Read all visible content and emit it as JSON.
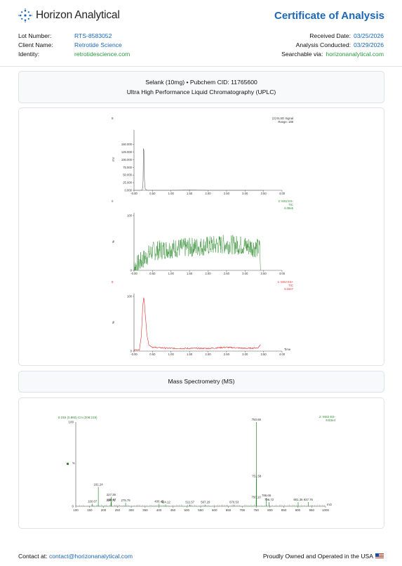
{
  "header": {
    "brand": "Horizon Analytical",
    "doc_title": "Certificate of Analysis",
    "left": [
      {
        "label": "Lot Number:",
        "value": "RTS-8583052"
      },
      {
        "label": "Client Name:",
        "value": "Retrotide Science"
      },
      {
        "label": "Identity:",
        "value": "retrotidescience.com"
      }
    ],
    "right": [
      {
        "label": "Received Date:",
        "value": "03/25/2026"
      },
      {
        "label": "Analysis Conducted:",
        "value": "03/29/2026"
      },
      {
        "label": "Searchable via:",
        "value": "horizonanalytical.com"
      }
    ]
  },
  "sample": {
    "line1": "Selank (10mg) • Pubchem CID: 11765600",
    "line2": "Ultra High Performance Liquid Chromatography (UPLC)"
  },
  "ms_title": "Mass Spectrometry (MS)",
  "footer": {
    "contact_label": "Contact at:",
    "contact_email": "contact@horizonanalytical.com",
    "made_in": "Proudly Owned and Operated in the USA"
  },
  "colors": {
    "brand_blue": "#1a67b8",
    "green": "#2a9a3e",
    "trace_green": "#2e8b2e",
    "trace_red": "#e03030"
  },
  "chart_data": [
    {
      "type": "line",
      "panel_tag": "8",
      "legend": [
        "(2) ELSD Signal",
        "Range: 188"
      ],
      "ylabel": "mV",
      "yticks": [
        "0.000",
        "25.000",
        "50.000",
        "75.000",
        "100.000",
        "125.000",
        "150.000"
      ],
      "xticks": [
        "-0.00",
        "0.50",
        "1.00",
        "1.50",
        "2.00",
        "2.50",
        "3.00",
        "3.50",
        "4.00"
      ],
      "xlim": [
        0,
        4.0
      ],
      "ylim": [
        0,
        188
      ],
      "color": "#666666",
      "x": [
        0,
        0.2,
        0.22,
        0.24,
        0.25,
        0.26,
        0.27,
        0.28,
        0.3,
        0.35,
        0.5,
        1.0,
        1.5,
        2.0,
        2.5,
        3.0,
        3.5
      ],
      "y": [
        0,
        0,
        1,
        10,
        50,
        180,
        120,
        40,
        5,
        0,
        0,
        0,
        1,
        0,
        0,
        0,
        0
      ]
    },
    {
      "type": "line",
      "panel_tag": "8",
      "legend": [
        "2: MS2 ES-",
        "TIC",
        "6.08e5"
      ],
      "ylabel": "%",
      "yticks": [
        "0",
        "100"
      ],
      "xticks": [
        "-0.00",
        "0.50",
        "1.00",
        "1.50",
        "2.00",
        "2.50",
        "3.00",
        "3.50",
        "4.00"
      ],
      "xlim": [
        0,
        4.0
      ],
      "ylim": [
        0,
        100
      ],
      "color": "#2e8b2e",
      "x": [
        0,
        0.5,
        1.0,
        1.5,
        2.0,
        2.5,
        3.0,
        3.4,
        3.42
      ],
      "y": [
        5,
        35,
        40,
        42,
        45,
        48,
        45,
        40,
        0
      ]
    },
    {
      "type": "line",
      "panel_tag": "8",
      "legend": [
        "1: MS2 ES+",
        "TIC",
        "5.16e7"
      ],
      "ylabel": "%",
      "yticks": [
        "0",
        "100"
      ],
      "xlabel": "Time",
      "xticks": [
        "-0.00",
        "0.50",
        "1.00",
        "1.50",
        "2.00",
        "2.50",
        "3.00",
        "3.50",
        "4.00"
      ],
      "xlim": [
        0,
        4.0
      ],
      "ylim": [
        0,
        100
      ],
      "color": "#e03030",
      "x": [
        0,
        0.15,
        0.2,
        0.24,
        0.27,
        0.3,
        0.35,
        0.4,
        0.5,
        1.0,
        1.5,
        2.0,
        2.5,
        3.0,
        3.35,
        3.4,
        3.42
      ],
      "y": [
        2,
        3,
        30,
        85,
        100,
        70,
        30,
        12,
        7,
        5,
        5,
        5,
        7,
        5,
        6,
        10,
        12
      ]
    },
    {
      "type": "bar",
      "title_left": "8 215 (0.860) Cm (208:219)",
      "legend": [
        "2: MS2 ES-",
        "9.83e4"
      ],
      "xlabel": "m/z",
      "xticks": [
        "100",
        "150",
        "200",
        "250",
        "300",
        "350",
        "400",
        "450",
        "500",
        "550",
        "600",
        "650",
        "700",
        "750",
        "800",
        "850",
        "900",
        "950",
        "1000"
      ],
      "xlim": [
        100,
        1000
      ],
      "ylim": [
        0,
        100
      ],
      "yticks": [
        "0",
        "100"
      ],
      "ylabel": "%",
      "color": "#2e8b2e",
      "peaks": [
        {
          "mz": 160.07,
          "label": "160.07",
          "intensity": 3
        },
        {
          "mz": 181.24,
          "label": "181.24",
          "intensity": 23
        },
        {
          "mz": 226.72,
          "label": "226.72",
          "intensity": 4
        },
        {
          "mz": 227.39,
          "label": "227.39",
          "intensity": 11
        },
        {
          "mz": 228.57,
          "label": "228.57",
          "intensity": 5
        },
        {
          "mz": 279.79,
          "label": "279.79",
          "intensity": 4
        },
        {
          "mz": 400.45,
          "label": "400.45",
          "intensity": 3
        },
        {
          "mz": 424.12,
          "label": "424.12",
          "intensity": 2
        },
        {
          "mz": 511.57,
          "label": "511.57",
          "intensity": 2
        },
        {
          "mz": 567.29,
          "label": "567.29",
          "intensity": 2
        },
        {
          "mz": 670.53,
          "label": "670.53",
          "intensity": 2
        },
        {
          "mz": 750.1,
          "label": "750.10",
          "intensity": 8
        },
        {
          "mz": 750.69,
          "label": "750.69",
          "intensity": 100
        },
        {
          "mz": 751.58,
          "label": "751.58",
          "intensity": 33
        },
        {
          "mz": 786.65,
          "label": "786.65",
          "intensity": 10
        },
        {
          "mz": 796.72,
          "label": "796.72",
          "intensity": 5
        },
        {
          "mz": 901.36,
          "label": "901.36",
          "intensity": 5
        },
        {
          "mz": 937.76,
          "label": "937.76",
          "intensity": 5
        }
      ]
    }
  ]
}
